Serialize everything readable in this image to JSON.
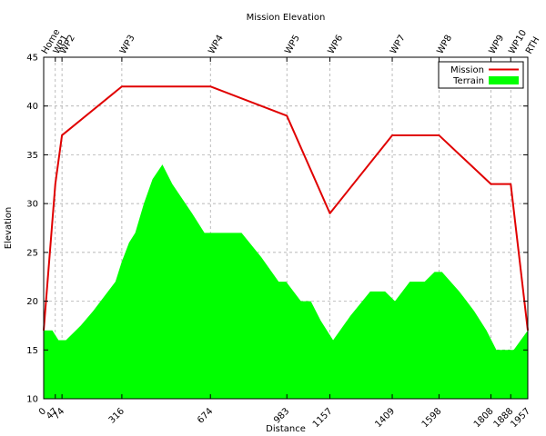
{
  "chart_data": {
    "type": "area",
    "title": "Mission Elevation",
    "xlabel": "Distance",
    "ylabel": "Elevation",
    "xlim": [
      0,
      1957
    ],
    "ylim": [
      10,
      45
    ],
    "y_ticks": [
      10,
      15,
      20,
      25,
      30,
      35,
      40,
      45
    ],
    "x_ticks": [
      0,
      47,
      74,
      316,
      674,
      983,
      1157,
      1409,
      1598,
      1808,
      1888,
      1957
    ],
    "top_ticks": [
      {
        "label": "Home",
        "x": 0
      },
      {
        "label": "WP1",
        "x": 47
      },
      {
        "label": "WP2",
        "x": 74
      },
      {
        "label": "WP3",
        "x": 316
      },
      {
        "label": "WP4",
        "x": 674
      },
      {
        "label": "WP5",
        "x": 983
      },
      {
        "label": "WP6",
        "x": 1157
      },
      {
        "label": "WP7",
        "x": 1409
      },
      {
        "label": "WP8",
        "x": 1598
      },
      {
        "label": "WP9",
        "x": 1808
      },
      {
        "label": "WP10",
        "x": 1888
      },
      {
        "label": "RTH",
        "x": 1957
      }
    ],
    "grid": true,
    "legend_position": "top-right",
    "series": [
      {
        "name": "Mission",
        "kind": "line",
        "color": "#e00000",
        "x": [
          0,
          47,
          74,
          316,
          674,
          983,
          1157,
          1409,
          1598,
          1808,
          1888,
          1957
        ],
        "y": [
          17,
          32,
          37,
          42,
          42,
          39,
          29,
          37,
          37,
          32,
          32,
          17
        ]
      },
      {
        "name": "Terrain",
        "kind": "area",
        "color": "#00ff00",
        "x": [
          0,
          35,
          60,
          90,
          150,
          200,
          260,
          290,
          315,
          345,
          370,
          405,
          440,
          480,
          520,
          600,
          650,
          700,
          800,
          880,
          950,
          980,
          1040,
          1080,
          1120,
          1170,
          1240,
          1320,
          1380,
          1420,
          1480,
          1540,
          1580,
          1610,
          1680,
          1740,
          1790,
          1830,
          1900,
          1957
        ],
        "y": [
          17,
          17,
          16,
          16,
          17.5,
          19,
          21,
          22,
          24,
          26,
          27,
          30,
          32.5,
          34,
          32,
          29,
          27,
          27,
          27,
          24.5,
          22,
          22,
          20,
          20,
          18,
          16,
          18.5,
          21,
          21,
          20,
          22,
          22,
          23,
          23,
          21,
          19,
          17,
          15,
          15,
          17
        ]
      }
    ]
  }
}
